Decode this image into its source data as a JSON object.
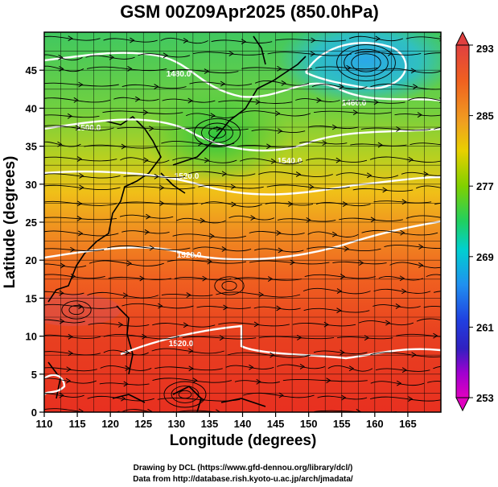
{
  "title": "GSM 00Z09Apr2025 (850.0hPa)",
  "x_label": "Longitude (degrees)",
  "y_label": "Latitude  (degrees)",
  "x_ticks": [
    "110",
    "115",
    "120",
    "125",
    "130",
    "135",
    "140",
    "145",
    "150",
    "155",
    "160",
    "165"
  ],
  "y_ticks": [
    "0",
    "5",
    "10",
    "15",
    "20",
    "25",
    "30",
    "35",
    "40",
    "45"
  ],
  "colorbar_ticks": [
    "293",
    "285",
    "277",
    "269",
    "261",
    "253"
  ],
  "contour_labels": [
    "1480.0",
    "1460.0",
    "1540.0",
    "1520.0",
    "1520.0",
    "1520.0",
    "1500.0"
  ],
  "credits": [
    "Drawing by DCL (https://www.gfd-dennou.org/library/dcl/)",
    "Data from http://database.rish.kyoto-u.ac.jp/arch/jmadata/"
  ],
  "map": {
    "lon_range": [
      110,
      170
    ],
    "lat_range": [
      0,
      50
    ],
    "fields": "850 hPa temperature (shaded, K), geopotential height (white contours, m), wind (streamlines)"
  },
  "colorbar": {
    "min": 253,
    "max": 293,
    "colors": [
      "#e000c0",
      "#8000e0",
      "#2020d0",
      "#2080f0",
      "#00c8e0",
      "#20d080",
      "#40c020",
      "#a0d000",
      "#e8c000",
      "#f08000",
      "#e83018",
      "#e04040"
    ]
  }
}
